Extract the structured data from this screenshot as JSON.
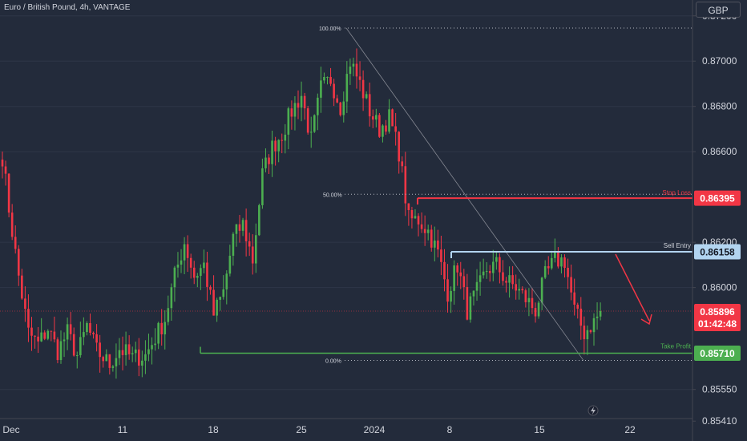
{
  "header": {
    "title": "Euro / British Pound, 4h, VANTAGE"
  },
  "currency": "GBP",
  "colors": {
    "bg": "#232b3b",
    "up": "#4caf50",
    "down": "#f23645",
    "sl": "#f23645",
    "entry": "#b2d4f0",
    "tp": "#4caf50",
    "grid": "#2e3648",
    "text": "#d1d4dc"
  },
  "chart_data": {
    "type": "candlestick",
    "symbol": "EURGBP",
    "timeframe": "4h",
    "ylim": [
      0.8534,
      0.8727
    ],
    "y_ticks": [
      0.8541,
      0.8555,
      0.86,
      0.862,
      0.866,
      0.868,
      0.87,
      0.872
    ],
    "y_tick_labels": [
      "0.85410",
      "0.85550",
      "0.86000",
      "0.86200",
      "0.86600",
      "0.86800",
      "0.87000",
      "0.87200"
    ],
    "x_ticks": [
      "Dec",
      "11",
      "18",
      "25",
      "2024",
      "8",
      "15",
      "22"
    ],
    "price_tags": {
      "stop_loss": {
        "label": "Stop Loss",
        "value": "0.86395",
        "price": 0.86395
      },
      "sell_entry": {
        "label": "Sell Entry",
        "value": "0.86158",
        "price": 0.86158
      },
      "current": {
        "value": "0.85896",
        "countdown": "01:42:48",
        "price": 0.85896
      },
      "take_profit": {
        "label": "Take Profit",
        "value": "0.85710",
        "price": 0.8571
      }
    },
    "fibonacci": [
      {
        "label": "100.00%",
        "price": 0.87146
      },
      {
        "label": "50.00%",
        "price": 0.86412
      },
      {
        "label": "0.00%",
        "price": 0.85678
      }
    ],
    "anchors": [
      [
        0,
        0.8658
      ],
      [
        2,
        0.8635
      ],
      [
        5,
        0.8605
      ],
      [
        8,
        0.858
      ],
      [
        11,
        0.8575
      ],
      [
        14,
        0.8582
      ],
      [
        17,
        0.8572
      ],
      [
        20,
        0.858
      ],
      [
        23,
        0.857
      ],
      [
        26,
        0.8583
      ],
      [
        29,
        0.8572
      ],
      [
        33,
        0.8566
      ],
      [
        36,
        0.8573
      ],
      [
        40,
        0.8569
      ],
      [
        44,
        0.857
      ],
      [
        47,
        0.8578
      ],
      [
        50,
        0.8586
      ],
      [
        53,
        0.8605
      ],
      [
        56,
        0.862
      ],
      [
        59,
        0.8605
      ],
      [
        62,
        0.861
      ],
      [
        65,
        0.8588
      ],
      [
        68,
        0.8598
      ],
      [
        71,
        0.8622
      ],
      [
        74,
        0.8628
      ],
      [
        77,
        0.8612
      ],
      [
        80,
        0.865
      ],
      [
        83,
        0.8662
      ],
      [
        86,
        0.8668
      ],
      [
        89,
        0.8678
      ],
      [
        92,
        0.8685
      ],
      [
        95,
        0.8665
      ],
      [
        98,
        0.8688
      ],
      [
        101,
        0.8692
      ],
      [
        104,
        0.868
      ],
      [
        107,
        0.87
      ],
      [
        110,
        0.869
      ],
      [
        113,
        0.8678
      ],
      [
        116,
        0.867
      ],
      [
        119,
        0.8675
      ],
      [
        122,
        0.866
      ],
      [
        125,
        0.863
      ],
      [
        128,
        0.863
      ],
      [
        131,
        0.8625
      ],
      [
        134,
        0.8615
      ],
      [
        137,
        0.8598
      ],
      [
        140,
        0.861
      ],
      [
        143,
        0.859
      ],
      [
        146,
        0.8598
      ],
      [
        149,
        0.8608
      ],
      [
        152,
        0.861
      ],
      [
        155,
        0.8603
      ],
      [
        158,
        0.86
      ],
      [
        161,
        0.8595
      ],
      [
        164,
        0.859
      ],
      [
        167,
        0.8605
      ],
      [
        170,
        0.8612
      ],
      [
        173,
        0.8612
      ],
      [
        176,
        0.859
      ],
      [
        179,
        0.858
      ],
      [
        182,
        0.8585
      ],
      [
        184,
        0.8589
      ]
    ]
  }
}
